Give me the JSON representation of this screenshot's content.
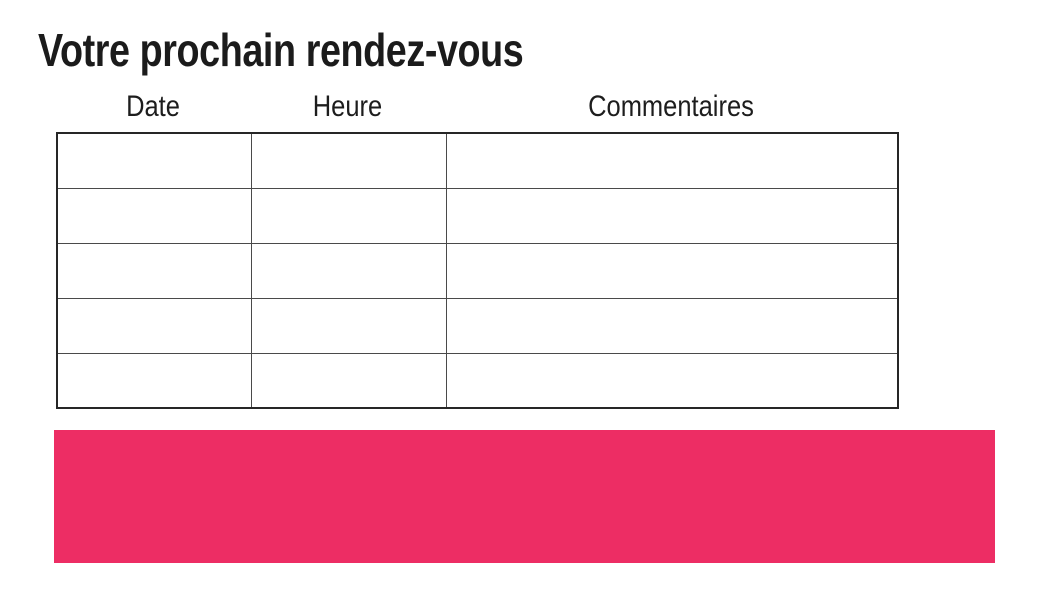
{
  "page": {
    "title": "Votre prochain rendez-vous"
  },
  "table": {
    "headers": [
      "Date",
      "Heure",
      "Commentaires"
    ],
    "rows": [
      [
        "",
        "",
        ""
      ],
      [
        "",
        "",
        ""
      ],
      [
        "",
        "",
        ""
      ],
      [
        "",
        "",
        ""
      ],
      [
        "",
        "",
        ""
      ]
    ]
  },
  "banner": {
    "color": "#ED2D64"
  },
  "colors": {
    "text": "#1B1B1B",
    "table_border_outer": "#262626",
    "table_border_inner": "#4A4A4A",
    "background": "#FFFFFF"
  }
}
